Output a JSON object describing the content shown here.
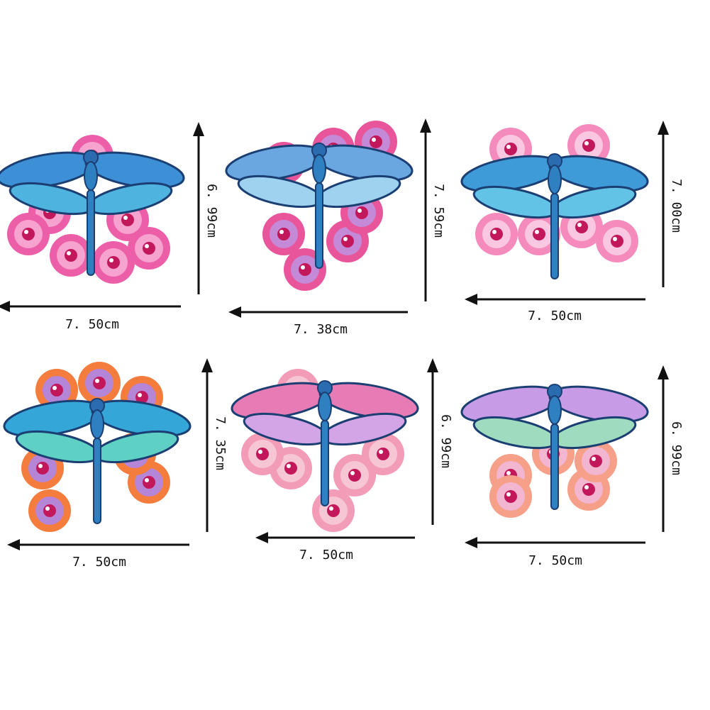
{
  "items": [
    {
      "height": "6. 99cm",
      "width": "7. 50cm"
    },
    {
      "height": "7. 59cm",
      "width": "7. 38cm"
    },
    {
      "height": "7. 00cm",
      "width": "7. 50cm"
    },
    {
      "height": "7. 35cm",
      "width": "7. 50cm"
    },
    {
      "height": "6. 99cm",
      "width": "7. 50cm"
    },
    {
      "height": "6. 99cm",
      "width": "7. 50cm"
    }
  ]
}
